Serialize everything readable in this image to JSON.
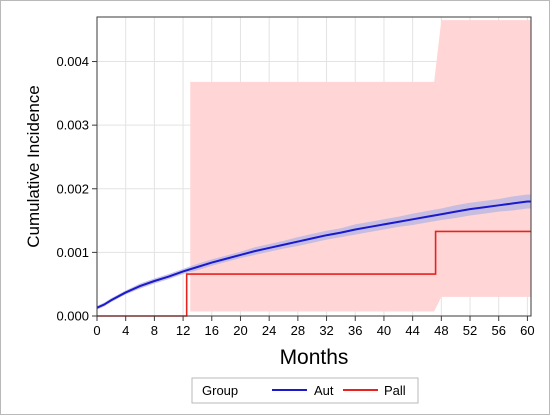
{
  "chart_data": {
    "type": "line",
    "xlabel": "Months",
    "ylabel": "Cumulative Incidence",
    "xlim": [
      0,
      60.5
    ],
    "ylim": [
      0,
      0.0047
    ],
    "xticks": [
      "0",
      "4",
      "8",
      "12",
      "16",
      "20",
      "24",
      "28",
      "32",
      "36",
      "40",
      "44",
      "48",
      "52",
      "56",
      "60"
    ],
    "xtick_values": [
      0,
      4,
      8,
      12,
      16,
      20,
      24,
      28,
      32,
      36,
      40,
      44,
      48,
      52,
      56,
      60
    ],
    "yticks": [
      "0.000",
      "0.001",
      "0.002",
      "0.003",
      "0.004"
    ],
    "ytick_values": [
      0,
      0.001,
      0.002,
      0.003,
      0.004
    ],
    "grid": true,
    "legend": {
      "title": "Group",
      "placement": "bottom-center",
      "entries": [
        "Aut",
        "Pall"
      ]
    },
    "colors": {
      "Aut": "#1a1acc",
      "Aut_band": "#b9b6e4",
      "Pall": "#e8221e",
      "Pall_band": "#ffd5d6",
      "grid": "#e3e3e3",
      "axis": "#3a3a3a"
    },
    "series": [
      {
        "name": "Aut",
        "step": false,
        "x": [
          0,
          1,
          2,
          4,
          6,
          8,
          10,
          12,
          14,
          16,
          18,
          20,
          22,
          24,
          26,
          28,
          30,
          32,
          34,
          36,
          38,
          40,
          42,
          44,
          46,
          48,
          50,
          52,
          54,
          56,
          58,
          60,
          60.5
        ],
        "y": [
          0.00013,
          0.00018,
          0.00025,
          0.00037,
          0.00047,
          0.00055,
          0.00062,
          0.0007,
          0.00077,
          0.00084,
          0.0009,
          0.00096,
          0.00102,
          0.00107,
          0.00112,
          0.00117,
          0.00122,
          0.00127,
          0.00131,
          0.00136,
          0.0014,
          0.00144,
          0.00148,
          0.00152,
          0.00156,
          0.0016,
          0.00164,
          0.00168,
          0.00171,
          0.00174,
          0.00177,
          0.0018,
          0.0018
        ],
        "lower": [
          0.0001,
          0.00015,
          0.00022,
          0.00034,
          0.00043,
          0.00051,
          0.00058,
          0.00066,
          0.00072,
          0.00079,
          0.00085,
          0.00091,
          0.00096,
          0.00101,
          0.00106,
          0.0011,
          0.00115,
          0.0012,
          0.00124,
          0.00128,
          0.00132,
          0.00136,
          0.0014,
          0.00143,
          0.00147,
          0.00151,
          0.00154,
          0.00158,
          0.00161,
          0.00164,
          0.00166,
          0.00169,
          0.00169
        ],
        "upper": [
          0.00016,
          0.00021,
          0.00028,
          0.0004,
          0.00051,
          0.00059,
          0.00066,
          0.00074,
          0.00082,
          0.00089,
          0.00095,
          0.00101,
          0.00108,
          0.00113,
          0.00118,
          0.00124,
          0.00129,
          0.00134,
          0.00138,
          0.00144,
          0.00148,
          0.00152,
          0.00156,
          0.00161,
          0.00165,
          0.00169,
          0.00174,
          0.00178,
          0.00181,
          0.00184,
          0.00188,
          0.00191,
          0.00191
        ]
      },
      {
        "name": "Pall",
        "step": true,
        "x": [
          0,
          12.5,
          12.5,
          47.2,
          47.2,
          60.5
        ],
        "y": [
          0,
          0,
          0.00066,
          0.00066,
          0.00133,
          0.00133
        ],
        "band_x": [
          13,
          47,
          48,
          60.5
        ],
        "band_lower": [
          7e-05,
          7e-05,
          0.0003,
          0.0003
        ],
        "band_upper": [
          0.00368,
          0.00368,
          0.00465,
          0.00465
        ]
      }
    ]
  }
}
